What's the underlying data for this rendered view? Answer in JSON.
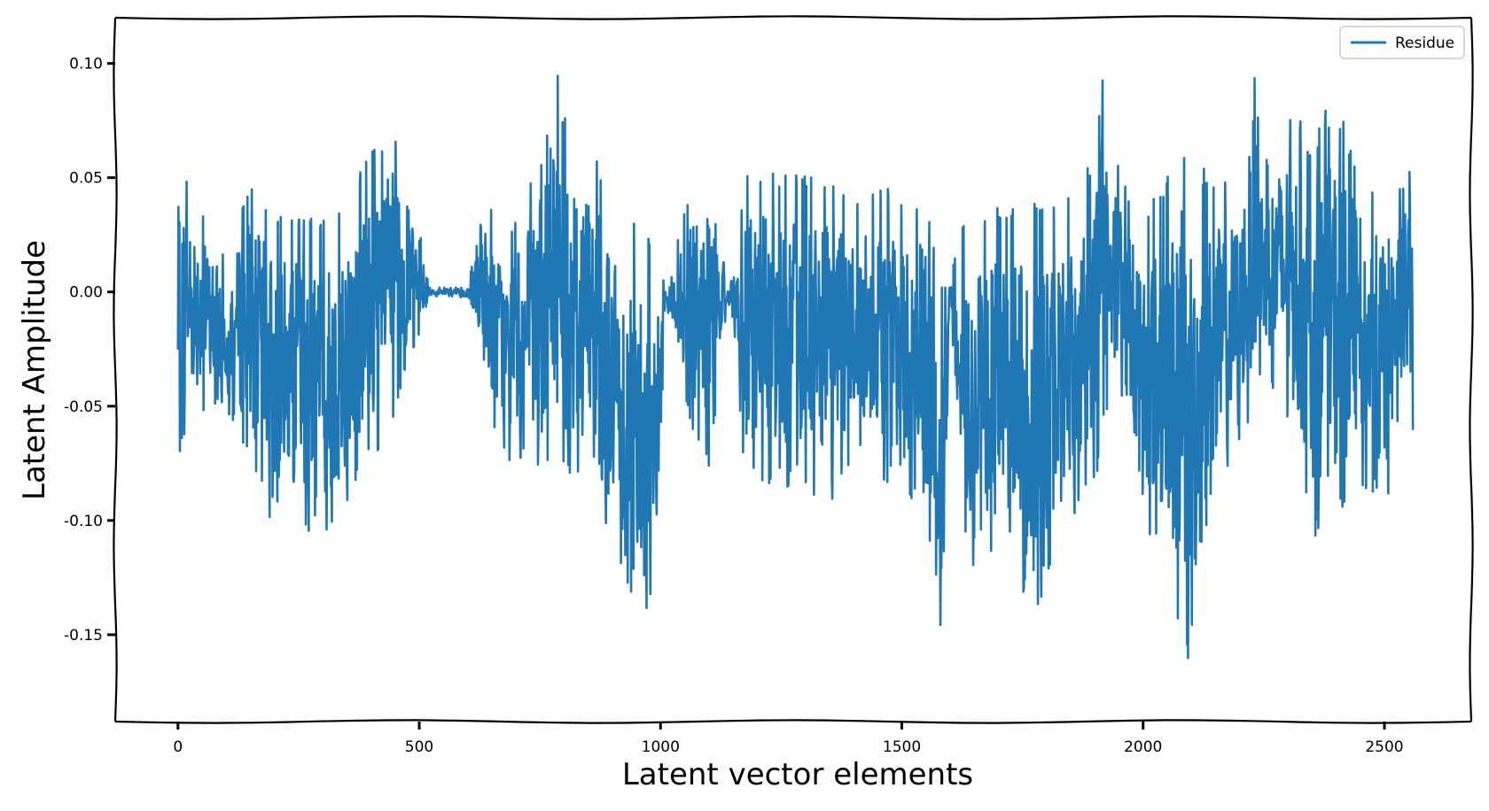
{
  "chart_data": {
    "type": "line",
    "xlabel": "Latent vector elements",
    "ylabel": "Latent Amplitude",
    "xlim": [
      -130,
      2680
    ],
    "ylim": [
      -0.188,
      0.12
    ],
    "x_ticks": [
      0,
      500,
      1000,
      1500,
      2000,
      2500
    ],
    "y_ticks": [
      0.1,
      0.05,
      0.0,
      -0.05,
      -0.1,
      -0.15
    ],
    "x_tick_labels": [
      "0",
      "500",
      "1000",
      "1500",
      "2000",
      "2500"
    ],
    "y_tick_labels": [
      "0.10",
      "0.05",
      "0.00",
      "-0.05",
      "-0.10",
      "-0.15"
    ],
    "grid": false,
    "legend_position": "top-right",
    "n_points": 2560,
    "series": [
      {
        "name": "Residue",
        "color": "#1f77b4",
        "envelope_x": [
          0,
          20,
          60,
          100,
          150,
          200,
          250,
          300,
          350,
          400,
          450,
          500,
          520,
          560,
          600,
          640,
          680,
          720,
          760,
          780,
          800,
          850,
          900,
          950,
          990,
          1010,
          1060,
          1100,
          1140,
          1180,
          1220,
          1280,
          1350,
          1400,
          1450,
          1500,
          1550,
          1580,
          1600,
          1620,
          1660,
          1700,
          1750,
          1800,
          1850,
          1900,
          1920,
          1950,
          2000,
          2050,
          2080,
          2100,
          2150,
          2200,
          2230,
          2250,
          2300,
          2350,
          2400,
          2450,
          2500,
          2530,
          2559
        ],
        "envelope_max": [
          0.058,
          0.053,
          0.032,
          0.015,
          0.052,
          0.036,
          0.035,
          0.032,
          0.04,
          0.063,
          0.072,
          0.03,
          0.002,
          0.002,
          0.002,
          0.044,
          0.025,
          0.042,
          0.07,
          0.106,
          0.077,
          0.074,
          0.04,
          0.03,
          0.02,
          0.002,
          0.044,
          0.052,
          0.002,
          0.054,
          0.055,
          0.052,
          0.05,
          0.044,
          0.047,
          0.044,
          0.041,
          0.002,
          0.002,
          0.032,
          0.034,
          0.038,
          0.037,
          0.041,
          0.043,
          0.063,
          0.102,
          0.053,
          0.035,
          0.05,
          0.07,
          0.057,
          0.052,
          0.047,
          0.101,
          0.056,
          0.081,
          0.069,
          0.088,
          0.053,
          0.044,
          0.044,
          0.062
        ],
        "envelope_min": [
          -0.072,
          -0.06,
          -0.05,
          -0.05,
          -0.08,
          -0.106,
          -0.105,
          -0.115,
          -0.1,
          -0.076,
          -0.053,
          -0.018,
          -0.002,
          -0.002,
          -0.003,
          -0.05,
          -0.074,
          -0.08,
          -0.088,
          -0.076,
          -0.086,
          -0.09,
          -0.12,
          -0.14,
          -0.142,
          -0.003,
          -0.06,
          -0.08,
          -0.002,
          -0.09,
          -0.087,
          -0.087,
          -0.093,
          -0.073,
          -0.077,
          -0.098,
          -0.096,
          -0.175,
          -0.003,
          -0.1,
          -0.133,
          -0.11,
          -0.133,
          -0.14,
          -0.1,
          -0.087,
          -0.055,
          -0.045,
          -0.1,
          -0.131,
          -0.155,
          -0.167,
          -0.11,
          -0.064,
          -0.052,
          -0.033,
          -0.063,
          -0.108,
          -0.11,
          -0.083,
          -0.105,
          -0.058,
          -0.062
        ]
      }
    ]
  }
}
